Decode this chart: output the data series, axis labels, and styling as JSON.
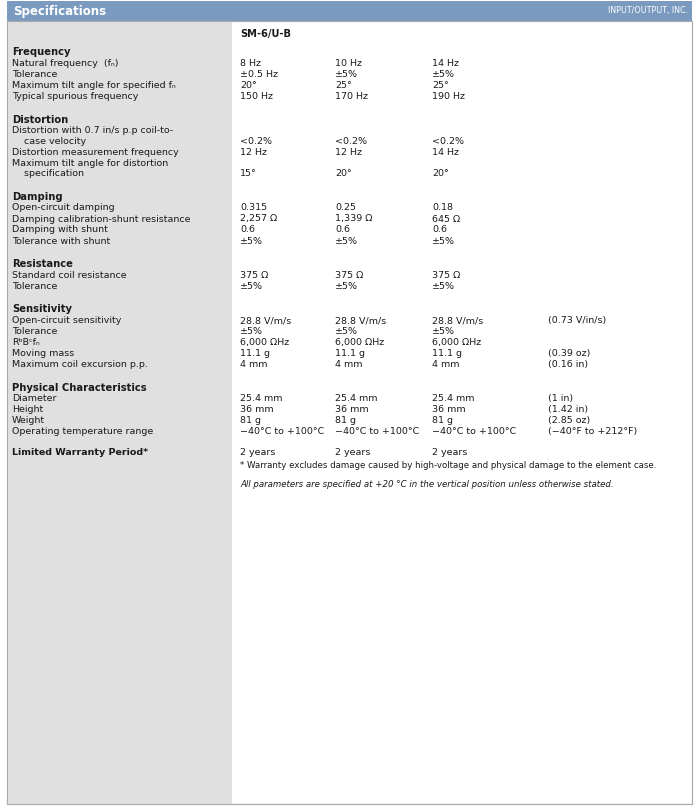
{
  "title": "Specifications",
  "logo": "INPUT/OUTPUT, INC.",
  "header_bg": "#7a9bbf",
  "header_text_color": "#ffffff",
  "left_col_bg": "#e0e0e0",
  "body_bg": "#ffffff",
  "border_color": "#aaaaaa",
  "col_header": "SM-6/U-B",
  "sections": [
    {
      "heading": "Frequency",
      "rows": [
        {
          "label": "Natural frequency  (fₙ)",
          "cols": [
            "8 Hz",
            "10 Hz",
            "14 Hz",
            ""
          ],
          "multiline": false
        },
        {
          "label": "Tolerance",
          "cols": [
            "±0.5 Hz",
            "±5%",
            "±5%",
            ""
          ],
          "multiline": false
        },
        {
          "label": "Maximum tilt angle for specified fₙ",
          "cols": [
            "20°",
            "25°",
            "25°",
            ""
          ],
          "multiline": false
        },
        {
          "label": "Typical spurious frequency",
          "cols": [
            "150 Hz",
            "170 Hz",
            "190 Hz",
            ""
          ],
          "multiline": false
        }
      ]
    },
    {
      "heading": "Distortion",
      "rows": [
        {
          "label": "Distortion with 0.7 in/s p.p coil-to-",
          "label2": "    case velocity",
          "cols": [
            "<0.2%",
            "<0.2%",
            "<0.2%",
            ""
          ],
          "multiline": true
        },
        {
          "label": "Distortion measurement frequency",
          "cols": [
            "12 Hz",
            "12 Hz",
            "14 Hz",
            ""
          ],
          "multiline": false
        },
        {
          "label": "Maximum tilt angle for distortion",
          "label2": "    specification",
          "cols": [
            "15°",
            "20°",
            "20°",
            ""
          ],
          "multiline": true
        }
      ]
    },
    {
      "heading": "Damping",
      "rows": [
        {
          "label": "Open-circuit damping",
          "cols": [
            "0.315",
            "0.25",
            "0.18",
            ""
          ],
          "multiline": false
        },
        {
          "label": "Damping calibration-shunt resistance",
          "cols": [
            "2,257 Ω",
            "1,339 Ω",
            "645 Ω",
            ""
          ],
          "multiline": false
        },
        {
          "label": "Damping with shunt",
          "cols": [
            "0.6",
            "0.6",
            "0.6",
            ""
          ],
          "multiline": false
        },
        {
          "label": "Tolerance with shunt",
          "cols": [
            "±5%",
            "±5%",
            "±5%",
            ""
          ],
          "multiline": false
        }
      ]
    },
    {
      "heading": "Resistance",
      "rows": [
        {
          "label": "Standard coil resistance",
          "cols": [
            "375 Ω",
            "375 Ω",
            "375 Ω",
            ""
          ],
          "multiline": false
        },
        {
          "label": "Tolerance",
          "cols": [
            "±5%",
            "±5%",
            "±5%",
            ""
          ],
          "multiline": false
        }
      ]
    },
    {
      "heading": "Sensitivity",
      "rows": [
        {
          "label": "Open-circuit sensitivity",
          "cols": [
            "28.8 V/m/s",
            "28.8 V/m/s",
            "28.8 V/m/s",
            "(0.73 V/in/s)"
          ],
          "multiline": false
        },
        {
          "label": "Tolerance",
          "cols": [
            "±5%",
            "±5%",
            "±5%",
            ""
          ],
          "multiline": false
        },
        {
          "label": "RᵇBᶜfₙ",
          "cols": [
            "6,000 ΩHz",
            "6,000 ΩHz",
            "6,000 ΩHz",
            ""
          ],
          "multiline": false
        },
        {
          "label": "Moving mass",
          "cols": [
            "11.1 g",
            "11.1 g",
            "11.1 g",
            "(0.39 oz)"
          ],
          "multiline": false
        },
        {
          "label": "Maximum coil excursion p.p.",
          "cols": [
            "4 mm",
            "4 mm",
            "4 mm",
            "(0.16 in)"
          ],
          "multiline": false
        }
      ]
    },
    {
      "heading": "Physical Characteristics",
      "rows": [
        {
          "label": "Diameter",
          "cols": [
            "25.4 mm",
            "25.4 mm",
            "25.4 mm",
            "(1 in)"
          ],
          "multiline": false
        },
        {
          "label": "Height",
          "cols": [
            "36 mm",
            "36 mm",
            "36 mm",
            "(1.42 in)"
          ],
          "multiline": false
        },
        {
          "label": "Weight",
          "cols": [
            "81 g",
            "81 g",
            "81 g",
            "(2.85 oz)"
          ],
          "multiline": false
        },
        {
          "label": "Operating temperature range",
          "cols": [
            "−40°C to +100°C",
            "−40°C to +100°C",
            "−40°C to +100°C",
            "(−40°F to +212°F)"
          ],
          "multiline": false
        }
      ]
    }
  ],
  "warranty_label": "Limited Warranty Period*",
  "warranty_cols": [
    "2 years",
    "2 years",
    "2 years"
  ],
  "warranty_note1": "* Warranty excludes damage caused by high-voltage and physical damage to the element case.",
  "warranty_note2": "All parameters are specified at +20 °C in the vertical position unless otherwise stated.",
  "fs": 6.8,
  "fsh": 7.2,
  "fs_title": 8.5,
  "fs_logo": 5.8,
  "fs_note": 6.2
}
